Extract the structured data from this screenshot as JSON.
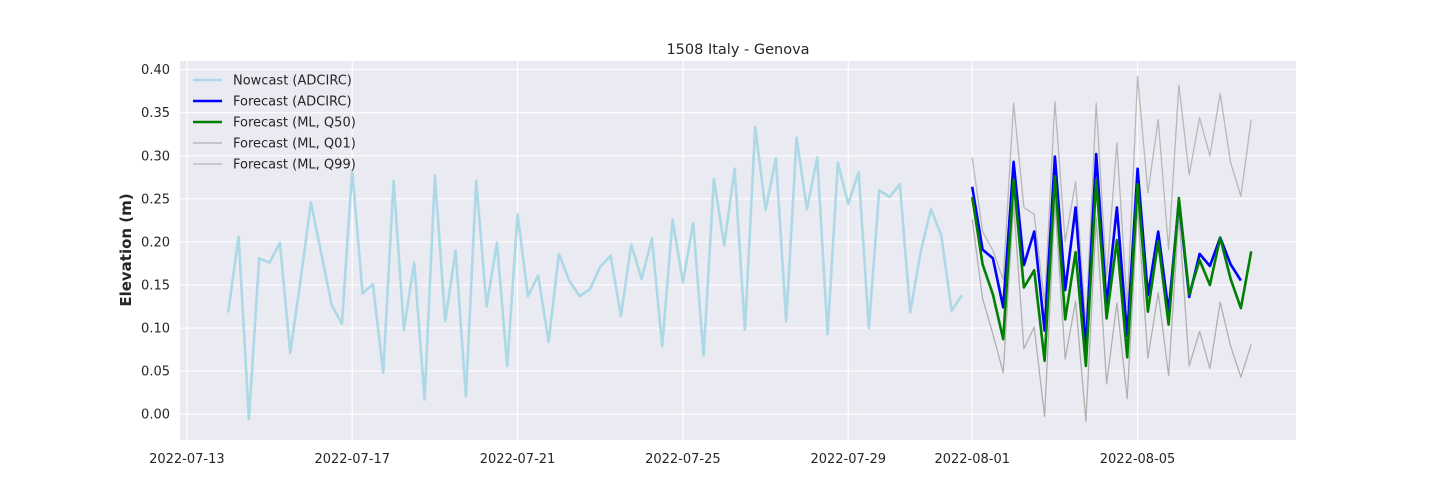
{
  "chart_data": {
    "type": "line",
    "title": "1508 Italy - Genova",
    "xlabel": "",
    "ylabel": "Elevation (m)",
    "xlim": [
      "2022-07-12T20:00",
      "2022-08-08T20:00"
    ],
    "ylim": [
      -0.03,
      0.41
    ],
    "x_ticks": [
      "2022-07-13",
      "2022-07-17",
      "2022-07-21",
      "2022-07-25",
      "2022-07-29",
      "2022-08-01",
      "2022-08-05"
    ],
    "y_ticks": [
      "0.00",
      "0.05",
      "0.10",
      "0.15",
      "0.20",
      "0.25",
      "0.30",
      "0.35",
      "0.40"
    ],
    "grid": true,
    "legend_position": "top-left",
    "series": [
      {
        "name": "Nowcast (ADCIRC)",
        "color": "#add8e6",
        "x": [
          "2022-07-14T00:00",
          "2022-07-14T06:00",
          "2022-07-14T12:00",
          "2022-07-14T18:00",
          "2022-07-15T00:00",
          "2022-07-15T06:00",
          "2022-07-15T12:00",
          "2022-07-15T18:00",
          "2022-07-16T00:00",
          "2022-07-16T06:00",
          "2022-07-16T12:00",
          "2022-07-16T18:00",
          "2022-07-17T00:00",
          "2022-07-17T06:00",
          "2022-07-17T12:00",
          "2022-07-17T18:00",
          "2022-07-18T00:00",
          "2022-07-18T06:00",
          "2022-07-18T12:00",
          "2022-07-18T18:00",
          "2022-07-19T00:00",
          "2022-07-19T06:00",
          "2022-07-19T12:00",
          "2022-07-19T18:00",
          "2022-07-20T00:00",
          "2022-07-20T06:00",
          "2022-07-20T12:00",
          "2022-07-20T18:00",
          "2022-07-21T00:00",
          "2022-07-21T06:00",
          "2022-07-21T12:00",
          "2022-07-21T18:00",
          "2022-07-22T00:00",
          "2022-07-22T06:00",
          "2022-07-22T12:00",
          "2022-07-22T18:00",
          "2022-07-23T00:00",
          "2022-07-23T06:00",
          "2022-07-23T12:00",
          "2022-07-23T18:00",
          "2022-07-24T00:00",
          "2022-07-24T06:00",
          "2022-07-24T12:00",
          "2022-07-24T18:00",
          "2022-07-25T00:00",
          "2022-07-25T06:00",
          "2022-07-25T12:00",
          "2022-07-25T18:00",
          "2022-07-26T00:00",
          "2022-07-26T06:00",
          "2022-07-26T12:00",
          "2022-07-26T18:00",
          "2022-07-27T00:00",
          "2022-07-27T06:00",
          "2022-07-27T12:00",
          "2022-07-27T18:00",
          "2022-07-28T00:00",
          "2022-07-28T06:00",
          "2022-07-28T12:00",
          "2022-07-28T18:00",
          "2022-07-29T00:00",
          "2022-07-29T06:00",
          "2022-07-29T12:00",
          "2022-07-29T18:00",
          "2022-07-30T00:00",
          "2022-07-30T06:00",
          "2022-07-30T12:00",
          "2022-07-30T18:00",
          "2022-07-31T00:00",
          "2022-07-31T06:00",
          "2022-07-31T12:00",
          "2022-07-31T18:00"
        ],
        "values": [
          0.118,
          0.206,
          -0.006,
          0.181,
          0.176,
          0.199,
          0.071,
          0.156,
          0.246,
          0.187,
          0.127,
          0.105,
          0.283,
          0.14,
          0.151,
          0.048,
          0.271,
          0.098,
          0.176,
          0.017,
          0.277,
          0.108,
          0.19,
          0.021,
          0.271,
          0.125,
          0.199,
          0.056,
          0.232,
          0.137,
          0.161,
          0.084,
          0.186,
          0.155,
          0.137,
          0.145,
          0.171,
          0.184,
          0.114,
          0.197,
          0.157,
          0.204,
          0.079,
          0.226,
          0.153,
          0.222,
          0.068,
          0.273,
          0.196,
          0.285,
          0.098,
          0.333,
          0.237,
          0.297,
          0.108,
          0.321,
          0.238,
          0.298,
          0.093,
          0.292,
          0.244,
          0.281,
          0.1,
          0.26,
          0.252,
          0.267,
          0.118,
          0.188,
          0.238,
          0.208,
          0.12,
          0.138
        ]
      },
      {
        "name": "Forecast (ADCIRC)",
        "color": "#0000ff",
        "x": [
          "2022-08-01T00:00",
          "2022-08-01T06:00",
          "2022-08-01T12:00",
          "2022-08-01T18:00",
          "2022-08-02T00:00",
          "2022-08-02T06:00",
          "2022-08-02T12:00",
          "2022-08-02T18:00",
          "2022-08-03T00:00",
          "2022-08-03T06:00",
          "2022-08-03T12:00",
          "2022-08-03T18:00",
          "2022-08-04T00:00",
          "2022-08-04T06:00",
          "2022-08-04T12:00",
          "2022-08-04T18:00",
          "2022-08-05T00:00",
          "2022-08-05T06:00",
          "2022-08-05T12:00",
          "2022-08-05T18:00",
          "2022-08-06T00:00",
          "2022-08-06T06:00",
          "2022-08-06T12:00",
          "2022-08-06T18:00",
          "2022-08-07T00:00",
          "2022-08-07T06:00",
          "2022-08-07T12:00"
        ],
        "values": [
          0.264,
          0.191,
          0.181,
          0.124,
          0.293,
          0.173,
          0.212,
          0.097,
          0.299,
          0.144,
          0.24,
          0.076,
          0.302,
          0.127,
          0.24,
          0.091,
          0.285,
          0.138,
          0.212,
          0.119,
          0.247,
          0.136,
          0.186,
          0.172,
          0.205,
          0.174,
          0.155
        ]
      },
      {
        "name": "Forecast (ML, Q50)",
        "color": "#008000",
        "x": [
          "2022-08-01T00:00",
          "2022-08-01T06:00",
          "2022-08-01T12:00",
          "2022-08-01T18:00",
          "2022-08-02T00:00",
          "2022-08-02T06:00",
          "2022-08-02T12:00",
          "2022-08-02T18:00",
          "2022-08-03T00:00",
          "2022-08-03T06:00",
          "2022-08-03T12:00",
          "2022-08-03T18:00",
          "2022-08-04T00:00",
          "2022-08-04T06:00",
          "2022-08-04T12:00",
          "2022-08-04T18:00",
          "2022-08-05T00:00",
          "2022-08-05T06:00",
          "2022-08-05T12:00",
          "2022-08-05T18:00",
          "2022-08-06T00:00",
          "2022-08-06T06:00",
          "2022-08-06T12:00",
          "2022-08-06T18:00",
          "2022-08-07T00:00",
          "2022-08-07T06:00",
          "2022-08-07T12:00",
          "2022-08-07T18:00"
        ],
        "values": [
          0.252,
          0.174,
          0.139,
          0.087,
          0.272,
          0.147,
          0.167,
          0.062,
          0.276,
          0.11,
          0.188,
          0.056,
          0.272,
          0.111,
          0.202,
          0.066,
          0.267,
          0.119,
          0.201,
          0.104,
          0.251,
          0.139,
          0.179,
          0.15,
          0.205,
          0.157,
          0.123,
          0.189
        ]
      },
      {
        "name": "Forecast (ML, Q01)",
        "color": "#b0b0b0",
        "x": [
          "2022-08-01T00:00",
          "2022-08-01T06:00",
          "2022-08-01T12:00",
          "2022-08-01T18:00",
          "2022-08-02T00:00",
          "2022-08-02T06:00",
          "2022-08-02T12:00",
          "2022-08-02T18:00",
          "2022-08-03T00:00",
          "2022-08-03T06:00",
          "2022-08-03T12:00",
          "2022-08-03T18:00",
          "2022-08-04T00:00",
          "2022-08-04T06:00",
          "2022-08-04T12:00",
          "2022-08-04T18:00",
          "2022-08-05T00:00",
          "2022-08-05T06:00",
          "2022-08-05T12:00",
          "2022-08-05T18:00",
          "2022-08-06T00:00",
          "2022-08-06T06:00",
          "2022-08-06T12:00",
          "2022-08-06T18:00",
          "2022-08-07T00:00",
          "2022-08-07T06:00",
          "2022-08-07T12:00",
          "2022-08-07T18:00"
        ],
        "values": [
          0.226,
          0.134,
          0.093,
          0.048,
          0.245,
          0.076,
          0.101,
          -0.003,
          0.247,
          0.064,
          0.131,
          -0.008,
          0.228,
          0.035,
          0.129,
          0.018,
          0.24,
          0.065,
          0.141,
          0.045,
          0.231,
          0.056,
          0.096,
          0.053,
          0.13,
          0.079,
          0.043,
          0.081
        ]
      },
      {
        "name": "Forecast (ML, Q99)",
        "color": "#b8b8b8",
        "x": [
          "2022-08-01T00:00",
          "2022-08-01T06:00",
          "2022-08-01T12:00",
          "2022-08-01T18:00",
          "2022-08-02T00:00",
          "2022-08-02T06:00",
          "2022-08-02T12:00",
          "2022-08-02T18:00",
          "2022-08-03T00:00",
          "2022-08-03T06:00",
          "2022-08-03T12:00",
          "2022-08-03T18:00",
          "2022-08-04T00:00",
          "2022-08-04T06:00",
          "2022-08-04T12:00",
          "2022-08-04T18:00",
          "2022-08-05T00:00",
          "2022-08-05T06:00",
          "2022-08-05T12:00",
          "2022-08-05T18:00",
          "2022-08-06T00:00",
          "2022-08-06T06:00",
          "2022-08-06T12:00",
          "2022-08-06T18:00",
          "2022-08-07T00:00",
          "2022-08-07T06:00",
          "2022-08-07T12:00",
          "2022-08-07T18:00"
        ],
        "values": [
          0.298,
          0.212,
          0.19,
          0.156,
          0.361,
          0.24,
          0.232,
          0.129,
          0.363,
          0.2,
          0.27,
          0.104,
          0.361,
          0.159,
          0.315,
          0.124,
          0.392,
          0.257,
          0.342,
          0.191,
          0.382,
          0.278,
          0.344,
          0.3,
          0.372,
          0.292,
          0.253,
          0.342
        ]
      }
    ]
  }
}
